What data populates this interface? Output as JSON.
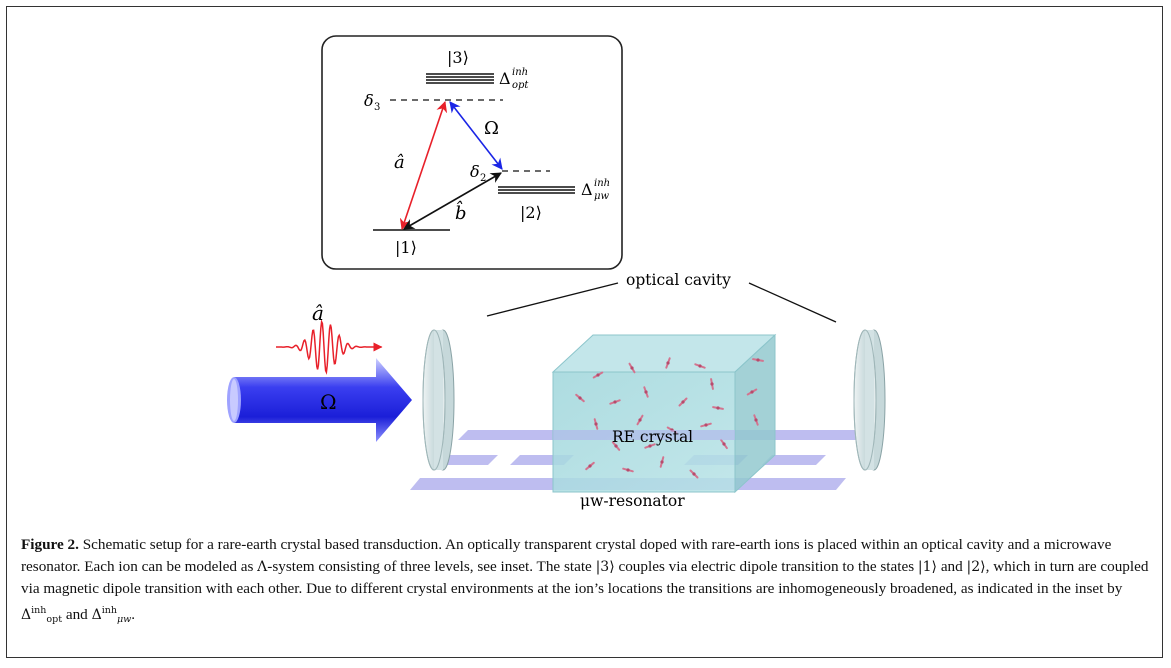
{
  "inset": {
    "level_3": "|3⟩",
    "level_2": "|2⟩",
    "level_1": "|1⟩",
    "delta_3": "δ",
    "delta_3_sub": "3",
    "delta_2": "δ",
    "delta_2_sub": "2",
    "omega": "Ω",
    "a_hat": "â",
    "b_hat": "b̂",
    "broad_opt_sym": "Δ",
    "broad_opt_sup": "inh",
    "broad_opt_sub": "opt",
    "broad_mw_sym": "Δ",
    "broad_mw_sup": "inh",
    "broad_mw_sub": "μw"
  },
  "setup": {
    "optical_cavity_label": "optical cavity",
    "probe_label": "â",
    "pump_label": "Ω",
    "crystal_label": "RE crystal",
    "resonator_label": "μw-resonator"
  },
  "colors": {
    "red_arrow": "#e8202a",
    "blue_arrow": "#1a25e6",
    "black_arrow": "#111111",
    "crystal_fill": "#a9dbe0",
    "resonator_fill": "#b7b6ee",
    "mirror_fill": "#d6e4e6"
  },
  "caption": {
    "label": "Figure 2.",
    "seg1": " Schematic setup for a rare-earth crystal based transduction. An optically transparent crystal doped with rare-earth ions is placed within an optical cavity and a microwave resonator. Each ion can be modeled as ",
    "lambda": "Λ",
    "seg2": "-system consisting of three levels, see inset. The state ",
    "ket3": "|3⟩",
    "seg3": " couples via electric dipole transition to the states ",
    "ket1": "|1⟩",
    "seg4": " and ",
    "ket2": "|2⟩",
    "seg5": ", which in turn are coupled via magnetic dipole transition with each other. Due to different crystal environments at the ion’s locations the transitions are inhomogeneously broadened, as indicated in the inset by ",
    "d1": "Δ",
    "d1_sup": "inh",
    "d1_sub": "opt",
    "seg6": " and ",
    "d2": "Δ",
    "d2_sup": "inh",
    "d2_sub": "μw",
    "seg7": "."
  }
}
